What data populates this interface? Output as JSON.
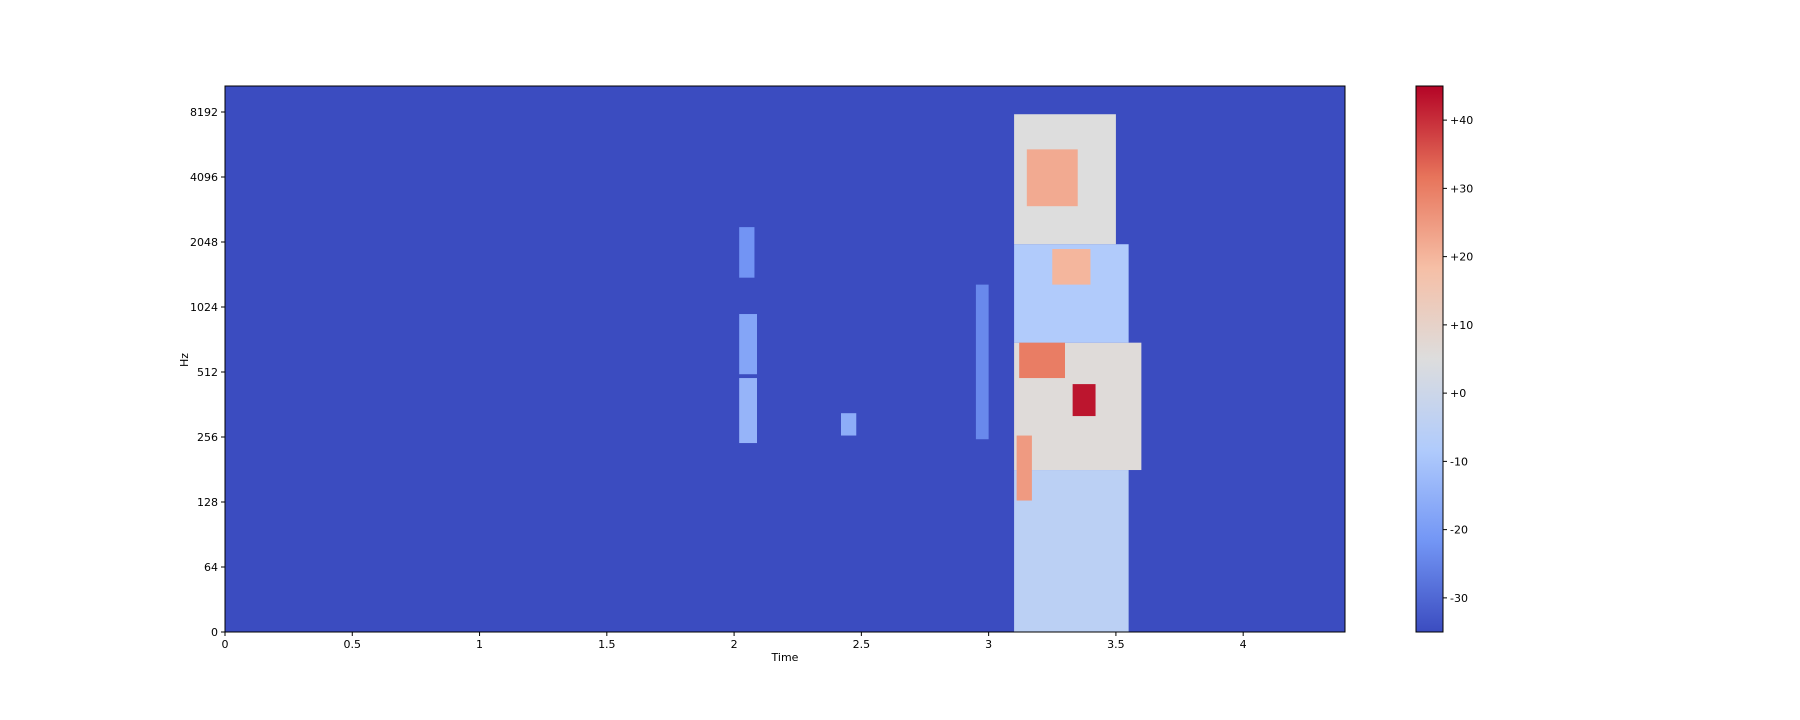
{
  "chart_data": {
    "type": "heatmap",
    "title": "",
    "xlabel": "Time",
    "ylabel": "Hz",
    "x_scale": "linear",
    "y_scale": "log2",
    "xlim": [
      0,
      4.4
    ],
    "ylim": [
      0,
      11025
    ],
    "x_ticks": [
      {
        "value": 0,
        "label": "0"
      },
      {
        "value": 0.5,
        "label": "0.5"
      },
      {
        "value": 1,
        "label": "1"
      },
      {
        "value": 1.5,
        "label": "1.5"
      },
      {
        "value": 2,
        "label": "2"
      },
      {
        "value": 2.5,
        "label": "2.5"
      },
      {
        "value": 3,
        "label": "3"
      },
      {
        "value": 3.5,
        "label": "3.5"
      },
      {
        "value": 4,
        "label": "4"
      }
    ],
    "y_ticks": [
      {
        "value": 0,
        "label": "0"
      },
      {
        "value": 64,
        "label": "64"
      },
      {
        "value": 128,
        "label": "128"
      },
      {
        "value": 256,
        "label": "256"
      },
      {
        "value": 512,
        "label": "512"
      },
      {
        "value": 1024,
        "label": "1024"
      },
      {
        "value": 2048,
        "label": "2048"
      },
      {
        "value": 4096,
        "label": "4096"
      },
      {
        "value": 8192,
        "label": "8192"
      }
    ],
    "value_range_db": [
      -35,
      45
    ],
    "background_db": -35,
    "colormap": {
      "name": "coolwarm",
      "stops": [
        "#3b4cc0",
        "#7396f5",
        "#b0cbfc",
        "#dddddd",
        "#f6bfa6",
        "#e7745b",
        "#b40426"
      ]
    },
    "colorbar": {
      "ticks": [
        {
          "value": -30,
          "label": "-30"
        },
        {
          "value": -20,
          "label": "-20"
        },
        {
          "value": -10,
          "label": "-10"
        },
        {
          "value": 0,
          "label": "+0"
        },
        {
          "value": 10,
          "label": "+10"
        },
        {
          "value": 20,
          "label": "+20"
        },
        {
          "value": 30,
          "label": "+30"
        },
        {
          "value": 40,
          "label": "+40"
        }
      ]
    },
    "regions": [
      {
        "name": "burst-2.05s-high",
        "t": [
          2.02,
          2.08
        ],
        "f": [
          1400,
          2400
        ],
        "db": -22
      },
      {
        "name": "burst-2.05s-mid",
        "t": [
          2.02,
          2.09
        ],
        "f": [
          500,
          950
        ],
        "db": -18
      },
      {
        "name": "burst-2.05s-low",
        "t": [
          2.02,
          2.09
        ],
        "f": [
          240,
          480
        ],
        "db": -14
      },
      {
        "name": "burst-2.45s",
        "t": [
          2.42,
          2.48
        ],
        "f": [
          260,
          330
        ],
        "db": -16
      },
      {
        "name": "burst-2.98s",
        "t": [
          2.95,
          3.0
        ],
        "f": [
          250,
          1300
        ],
        "db": -24
      },
      {
        "name": "speech-lowband",
        "t": [
          3.1,
          3.55
        ],
        "f": [
          0,
          180
        ],
        "db": -5
      },
      {
        "name": "speech-lowmid",
        "t": [
          3.1,
          3.6
        ],
        "f": [
          180,
          700
        ],
        "db": 6
      },
      {
        "name": "speech-mid",
        "t": [
          3.1,
          3.55
        ],
        "f": [
          700,
          2000
        ],
        "db": -8
      },
      {
        "name": "speech-upper",
        "t": [
          3.1,
          3.5
        ],
        "f": [
          2000,
          8000
        ],
        "db": 5
      },
      {
        "name": "speech-formant-1",
        "t": [
          3.12,
          3.3
        ],
        "f": [
          480,
          700
        ],
        "db": 30
      },
      {
        "name": "speech-formant-2",
        "t": [
          3.33,
          3.42
        ],
        "f": [
          320,
          450
        ],
        "db": 43
      },
      {
        "name": "speech-formant-3",
        "t": [
          3.15,
          3.35
        ],
        "f": [
          3000,
          5500
        ],
        "db": 22
      },
      {
        "name": "speech-formant-4",
        "t": [
          3.25,
          3.4
        ],
        "f": [
          1300,
          1900
        ],
        "db": 20
      },
      {
        "name": "speech-low-red",
        "t": [
          3.11,
          3.17
        ],
        "f": [
          130,
          260
        ],
        "db": 25
      }
    ]
  }
}
